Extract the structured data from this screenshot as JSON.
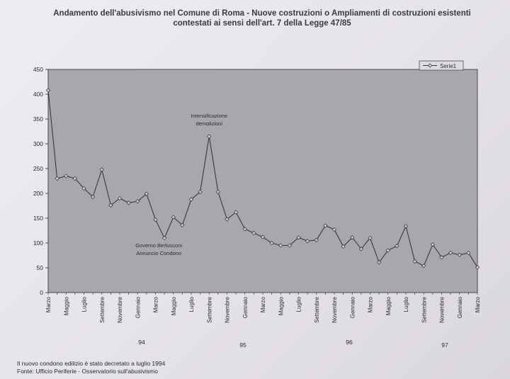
{
  "title": {
    "line1": "Andamento dell'abusivismo nel Comune di Roma - Nuove costruzioni o Ampliamenti di costruzioni esistenti",
    "line2": "contestati ai sensi dell'art. 7 della Legge 47/85"
  },
  "footer": {
    "note": "Il nuovo condono edilizio è stato decretato a luglio 1994",
    "source": "Fonte: Ufficio Periferie - Osservatorio sull'abusivismo"
  },
  "colors": {
    "plot_bg": "#a9a7ad",
    "line": "#3a3a3e",
    "frame": "#4a4a50"
  },
  "chart_data": {
    "type": "line",
    "ylim": [
      0,
      450
    ],
    "yticks": [
      0,
      50,
      100,
      150,
      200,
      250,
      300,
      350,
      400,
      450
    ],
    "grid": false,
    "legend": "top-right",
    "legend_label": "Serie1",
    "x_labels": [
      "Marzo",
      "Maggio",
      "Luglio",
      "Settembre",
      "Novembre",
      "Gennaio",
      "Marzo",
      "Maggio",
      "Luglio",
      "Settembre",
      "Novembre",
      "Gennaio",
      "Marzo",
      "Maggio",
      "Luglio",
      "Settembre",
      "Novembre",
      "Gennaio",
      "Marzo",
      "Maggio",
      "Luglio",
      "Settembre",
      "Novembre",
      "Gennaio",
      "Marzo"
    ],
    "years": [
      "94",
      "95",
      "96",
      "97"
    ],
    "series": [
      {
        "name": "Serie1",
        "values": [
          408,
          230,
          235,
          230,
          210,
          193,
          248,
          176,
          190,
          181,
          184,
          199,
          147,
          110,
          152,
          136,
          188,
          203,
          315,
          203,
          148,
          162,
          128,
          120,
          112,
          100,
          95,
          95,
          111,
          104,
          106,
          135,
          127,
          93,
          111,
          88,
          110,
          61,
          85,
          94,
          134,
          63,
          54,
          97,
          71,
          80,
          76,
          80,
          51
        ]
      }
    ],
    "annotations": [
      {
        "text": [
          "Intensificazione",
          "demolizioni"
        ],
        "point_index": 18
      },
      {
        "text": [
          "Governo Berlusconi",
          "Annuncio Condono"
        ],
        "point_index": 13
      }
    ]
  }
}
